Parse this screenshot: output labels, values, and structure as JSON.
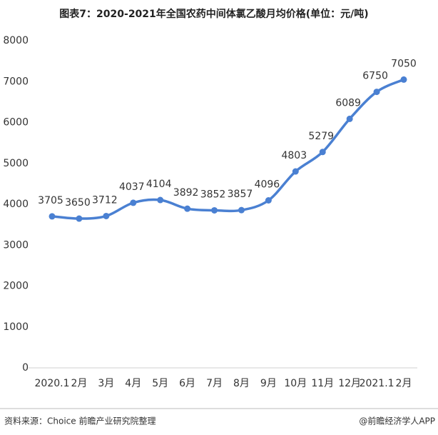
{
  "chart_data": {
    "type": "line",
    "title": "图表7：2020-2021年全国农药中间体氯乙酸月均价格(单位：元/吨)",
    "categories": [
      "2020.1",
      "2月",
      "3月",
      "4月",
      "5月",
      "6月",
      "7月",
      "8月",
      "9月",
      "10月",
      "11月",
      "12月",
      "2021.1",
      "2月"
    ],
    "series": [
      {
        "name": "氯乙酸月均价格",
        "color": "#4a80d2",
        "values": [
          3705,
          3650,
          3712,
          4037,
          4104,
          3892,
          3852,
          3857,
          4096,
          4803,
          5279,
          6089,
          6750,
          7050
        ]
      }
    ],
    "ylim": [
      0,
      8000
    ],
    "yticks": [
      0,
      1000,
      2000,
      3000,
      4000,
      5000,
      6000,
      7000,
      8000
    ],
    "grid": false,
    "source": "资料来源：Choice 前瞻产业研究院整理",
    "credit": "@前瞻经济学人APP"
  }
}
